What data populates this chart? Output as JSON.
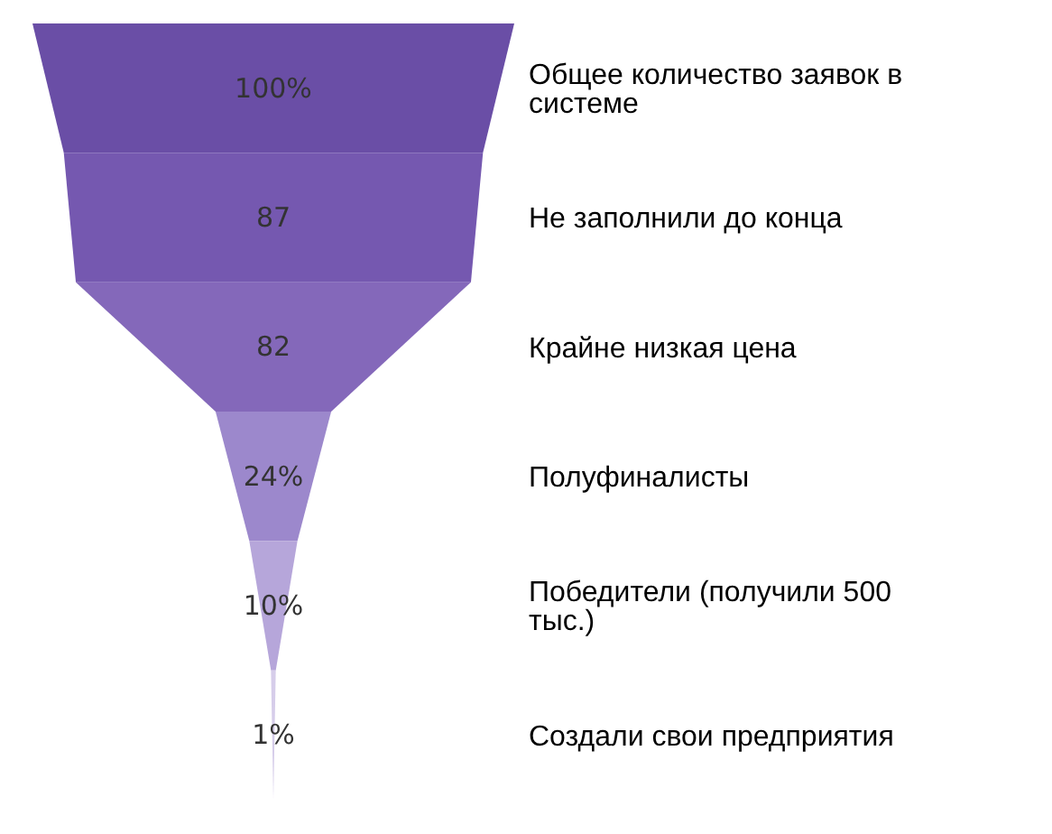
{
  "chart_data": {
    "type": "other",
    "categories": [
      "Общее количество заявок в системе",
      "Не заполнили до конца",
      "Крайне низкая цена",
      "Полуфиналисты",
      "Победители (получили 500 тыс.)",
      "Создали свои предприятия"
    ],
    "values": [
      100,
      87,
      82,
      24,
      10,
      1
    ],
    "value_labels": [
      "100%",
      "87",
      "82",
      "24%",
      "10%",
      "1%"
    ],
    "colors": [
      "#6a4ea6",
      "#7558b0",
      "#8468ba",
      "#9c88cc",
      "#b6a6da",
      "#d6cdea"
    ]
  }
}
